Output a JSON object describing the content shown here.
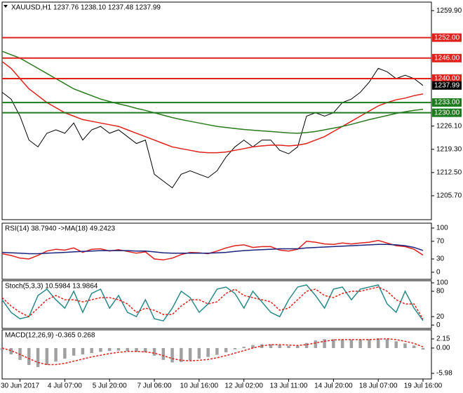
{
  "chart_data": [
    {
      "type": "line",
      "title": "XAUUSD,H1  1237.76 1238.10 1237.48 1237.99",
      "ylim": [
        1198.7,
        1262.4
      ],
      "yticks": [
        {
          "value": 1205.7,
          "label": "1205.70"
        },
        {
          "value": 1212.5,
          "label": "1212.50"
        },
        {
          "value": 1219.3,
          "label": "1219.30"
        },
        {
          "value": 1226.1,
          "label": "1226.10"
        },
        {
          "value": 1259.9,
          "label": "1259.90"
        }
      ],
      "series": [
        {
          "color": "#000000",
          "values": [
            1236,
            1234,
            1229,
            1222,
            1220,
            1224,
            1225,
            1224,
            1227,
            1222,
            1225,
            1226,
            1224,
            1225,
            1223,
            1221,
            1222,
            1212,
            1210,
            1208,
            1212,
            1213,
            1212,
            1211,
            1213,
            1217,
            1220,
            1222,
            1220,
            1222,
            1222,
            1219,
            1218,
            1220,
            1229,
            1230,
            1229,
            1230,
            1233,
            1234,
            1236,
            1239,
            1243,
            1242,
            1240,
            1241,
            1240,
            1237.99
          ]
        },
        {
          "color": "#e0201b",
          "values": [
            1245,
            1243,
            1240,
            1237,
            1235,
            1233,
            1231.5,
            1230,
            1229,
            1228,
            1227.5,
            1227,
            1226.5,
            1226,
            1225,
            1224,
            1223,
            1222,
            1221,
            1220,
            1219.5,
            1219,
            1218.5,
            1218.3,
            1218.3,
            1218.5,
            1219,
            1219.5,
            1220,
            1220.3,
            1220.5,
            1220.5,
            1220.3,
            1220.5,
            1221,
            1222,
            1223,
            1224.5,
            1226,
            1227.5,
            1229,
            1230.5,
            1232,
            1233,
            1233.8,
            1234.3,
            1235,
            1235.5
          ]
        },
        {
          "color": "#2a7a1e",
          "values": [
            1248,
            1247,
            1246,
            1244.5,
            1243,
            1241.5,
            1240,
            1238.5,
            1237,
            1236,
            1235,
            1234,
            1233.3,
            1232.6,
            1232,
            1231.3,
            1230.7,
            1230,
            1229.3,
            1228.6,
            1228,
            1227.5,
            1227,
            1226.5,
            1226,
            1225.7,
            1225.4,
            1225.1,
            1224.9,
            1224.7,
            1224.5,
            1224.3,
            1224.1,
            1224,
            1224.2,
            1224.5,
            1225,
            1225.5,
            1226,
            1226.6,
            1227.3,
            1228,
            1228.6,
            1229.2,
            1229.8,
            1230.3,
            1230.7,
            1231
          ]
        }
      ],
      "levels": [
        {
          "value": 1252,
          "label": "1252.00",
          "color": "#e0201b"
        },
        {
          "value": 1246,
          "label": "1246.00",
          "color": "#e0201b"
        },
        {
          "value": 1240,
          "label": "1240.00",
          "color": "#e0201b"
        },
        {
          "value": 1233,
          "label": "1233.00",
          "color": "#1e7a1e"
        },
        {
          "value": 1230,
          "label": "1230.00",
          "color": "#1e7a1e"
        }
      ],
      "last": {
        "value": 1237.99,
        "label": "1237.99",
        "color": "#000000"
      }
    },
    {
      "type": "line",
      "title": "RSI(14) 38.7940 ->MA(18) 49.2423",
      "ylim": [
        -16,
        111
      ],
      "yticks": [
        100,
        70,
        30,
        0
      ],
      "series": [
        {
          "color": "#e0201b",
          "values": [
            42,
            38,
            32,
            30,
            38,
            48,
            52,
            50,
            55,
            45,
            52,
            53,
            48,
            51,
            47,
            43,
            46,
            30,
            28,
            32,
            40,
            45,
            44,
            42,
            48,
            55,
            60,
            62,
            56,
            58,
            58,
            50,
            48,
            52,
            70,
            68,
            64,
            63,
            66,
            64,
            66,
            68,
            72,
            66,
            60,
            58,
            52,
            38.794
          ]
        },
        {
          "color": "#1a237e",
          "values": [
            45,
            44,
            43,
            42,
            42,
            43,
            44,
            45,
            46,
            47,
            48,
            49,
            49,
            49,
            49,
            48,
            48,
            46,
            44,
            43,
            43,
            43,
            43,
            43,
            44,
            45,
            47,
            49,
            50,
            51,
            52,
            53,
            53,
            53,
            55,
            56,
            57,
            58,
            59,
            60,
            61,
            62,
            63,
            63,
            62,
            60,
            56,
            49.2423
          ]
        }
      ]
    },
    {
      "type": "line",
      "title": "Stoch(5,3,3) 10.5984 13.9864",
      "ylim": [
        -8,
        105
      ],
      "yticks": [
        100,
        80,
        20,
        0
      ],
      "series": [
        {
          "color": "#2a8a8a",
          "values": [
            60,
            30,
            15,
            20,
            70,
            85,
            60,
            40,
            80,
            30,
            75,
            85,
            40,
            70,
            30,
            20,
            60,
            15,
            10,
            40,
            80,
            65,
            30,
            50,
            85,
            90,
            75,
            40,
            80,
            55,
            30,
            20,
            60,
            90,
            95,
            70,
            40,
            85,
            90,
            60,
            85,
            90,
            95,
            50,
            30,
            80,
            40,
            10.5984
          ]
        },
        {
          "color": "#e0201b",
          "dash": true,
          "values": [
            65,
            45,
            30,
            20,
            40,
            60,
            70,
            60,
            60,
            55,
            60,
            65,
            65,
            60,
            50,
            30,
            40,
            35,
            25,
            25,
            45,
            60,
            60,
            50,
            55,
            75,
            85,
            70,
            65,
            60,
            55,
            35,
            40,
            60,
            80,
            85,
            70,
            65,
            75,
            80,
            80,
            85,
            90,
            80,
            60,
            50,
            50,
            13.9864
          ]
        }
      ]
    },
    {
      "type": "line",
      "title": "MACD(12,26,9) -0.365 0.268",
      "ylim": [
        -7.3,
        4.3
      ],
      "yticks": [
        2.15,
        {
          "value": 0,
          "label": "0.00"
        },
        -5.98
      ],
      "categories": [
        null,
        null,
        "30 Jun 2017",
        null,
        null,
        null,
        null,
        "4 Jul 07:00",
        null,
        null,
        null,
        null,
        "5 Jul 20:00",
        null,
        null,
        null,
        null,
        "7 Jul 06:00",
        null,
        null,
        null,
        null,
        "10 Jul 16:00",
        null,
        null,
        null,
        null,
        "12 Jul 02:00",
        null,
        null,
        null,
        null,
        "13 Jul 11:00",
        null,
        null,
        null,
        null,
        "14 Jul 20:00",
        null,
        null,
        null,
        null,
        "18 Jul 07:00",
        null,
        null,
        null,
        null,
        "19 Jul 16:00"
      ],
      "series": [
        {
          "color": "#a0a0a0",
          "style": "bar",
          "values": [
            -0.5,
            -1.5,
            -2.8,
            -4,
            -4.5,
            -4,
            -3.2,
            -2.5,
            -1.8,
            -1.5,
            -1.2,
            -0.9,
            -0.7,
            -0.6,
            -0.7,
            -0.9,
            -1,
            -1.8,
            -2.8,
            -3.4,
            -3.3,
            -2.9,
            -2.5,
            -2.1,
            -1.6,
            -1,
            -0.3,
            0.3,
            0.7,
            0.9,
            0.9,
            0.7,
            0.5,
            0.5,
            1.2,
            1.8,
            2.1,
            2.1,
            2,
            2,
            2,
            2.1,
            2.3,
            2.1,
            1.6,
            1.1,
            0.6,
            -0.365
          ]
        },
        {
          "color": "#e0201b",
          "dash": true,
          "values": [
            0,
            -0.6,
            -1.5,
            -2.5,
            -3.4,
            -3.9,
            -3.9,
            -3.6,
            -3.1,
            -2.6,
            -2.1,
            -1.7,
            -1.3,
            -1,
            -0.8,
            -0.8,
            -0.9,
            -1.2,
            -1.8,
            -2.5,
            -2.9,
            -3,
            -2.9,
            -2.7,
            -2.3,
            -1.8,
            -1.2,
            -0.6,
            0,
            0.5,
            0.8,
            0.8,
            0.7,
            0.6,
            0.8,
            1.2,
            1.6,
            1.9,
            2,
            2,
            2,
            2,
            2.1,
            2.2,
            2,
            1.6,
            1.1,
            0.268
          ]
        }
      ]
    }
  ]
}
